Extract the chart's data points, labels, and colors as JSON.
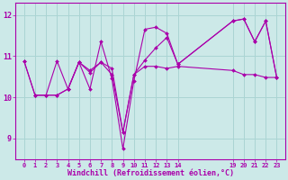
{
  "background_color": "#cce9e8",
  "grid_color": "#aad4d3",
  "line_color": "#aa00aa",
  "title": "Windchill (Refroidissement éolien,°C)",
  "ylim": [
    8.5,
    12.3
  ],
  "yticks": [
    9,
    10,
    11,
    12
  ],
  "xtick_positions": [
    0,
    1,
    2,
    3,
    4,
    5,
    6,
    7,
    8,
    9,
    10,
    11,
    12,
    13,
    14,
    19,
    20,
    21,
    22,
    23
  ],
  "xtick_labels": [
    "0",
    "1",
    "2",
    "3",
    "4",
    "5",
    "6",
    "7",
    "8",
    "9",
    "10",
    "11",
    "12",
    "13",
    "14",
    "19",
    "20",
    "21",
    "22",
    "23"
  ],
  "series1_x": [
    0,
    1,
    2,
    3,
    4,
    5,
    6,
    7,
    8,
    9,
    10,
    11,
    12,
    13,
    14,
    19,
    20,
    21,
    22,
    23
  ],
  "series1_y": [
    10.88,
    10.05,
    10.05,
    10.88,
    10.2,
    10.85,
    10.2,
    11.35,
    10.45,
    8.75,
    10.4,
    11.65,
    11.7,
    11.55,
    10.8,
    11.85,
    11.9,
    11.35,
    11.85,
    10.48
  ],
  "series2_x": [
    0,
    1,
    2,
    3,
    4,
    5,
    6,
    7,
    8,
    9,
    10,
    11,
    12,
    13,
    14,
    19,
    20,
    21,
    22,
    23
  ],
  "series2_y": [
    10.88,
    10.05,
    10.05,
    10.05,
    10.2,
    10.85,
    10.65,
    10.85,
    10.55,
    9.15,
    10.55,
    10.75,
    10.75,
    10.7,
    10.75,
    10.65,
    10.55,
    10.55,
    10.48,
    10.48
  ],
  "series3_x": [
    1,
    2,
    3,
    4,
    5,
    6,
    7,
    8,
    9,
    10,
    11,
    12,
    13,
    14,
    19,
    20,
    21,
    22,
    23
  ],
  "series3_y": [
    10.05,
    10.05,
    10.05,
    10.2,
    10.85,
    10.6,
    10.85,
    10.7,
    9.15,
    10.55,
    10.9,
    11.2,
    11.45,
    10.8,
    11.85,
    11.9,
    11.35,
    11.85,
    10.48
  ]
}
